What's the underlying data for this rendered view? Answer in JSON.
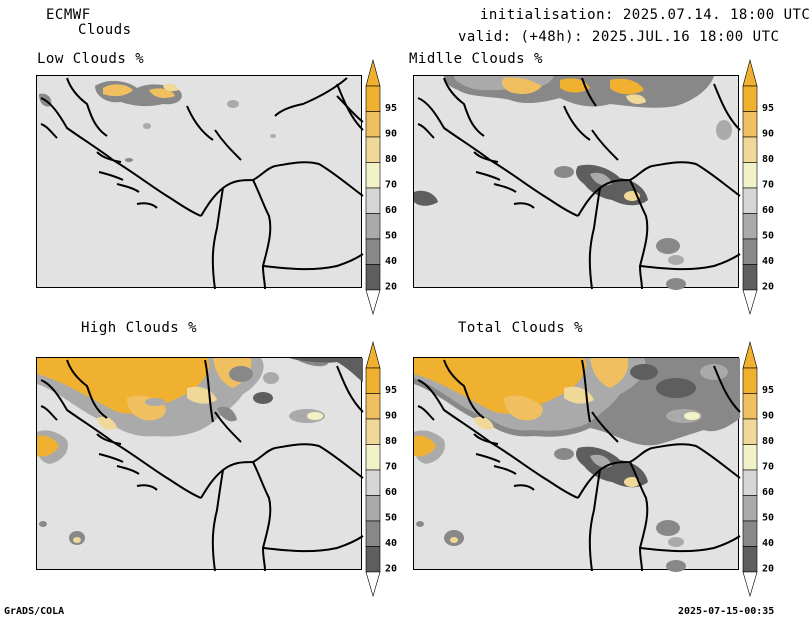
{
  "header": {
    "model": "ECMWF",
    "product": "Clouds",
    "init": "initialisation: 2025.07.14. 18:00 UTC",
    "valid": "valid: (+48h): 2025.JUL.16 18:00 UTC"
  },
  "panels": [
    {
      "id": "low",
      "title": "Low Clouds %"
    },
    {
      "id": "middle",
      "title": "Midlle Clouds %"
    },
    {
      "id": "high",
      "title": "High Clouds %"
    },
    {
      "id": "total",
      "title": "Total Clouds %"
    }
  ],
  "colorbar": {
    "labels": [
      "95",
      "90",
      "80",
      "70",
      "60",
      "50",
      "40",
      "20"
    ],
    "colors": [
      "#f0b030",
      "#f0c060",
      "#f0d898",
      "#f2f2c8",
      "#d6d6d6",
      "#aaaaaa",
      "#888888",
      "#5e5e5e"
    ]
  },
  "footer": {
    "left": "GrADS/COLA",
    "right": "2025-07-15-00:35"
  }
}
